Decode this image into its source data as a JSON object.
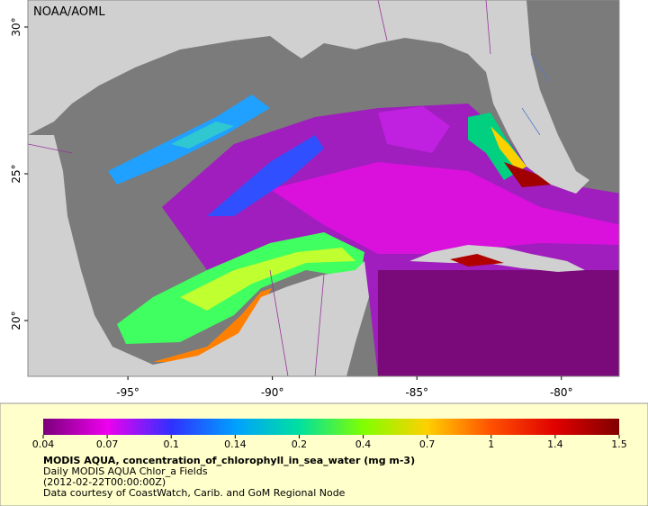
{
  "watermark": "NOAA/AOML",
  "map": {
    "lonlim": [
      -98.46,
      -78
    ],
    "latlim": [
      18.1,
      30.92
    ],
    "lat_ticks": [
      {
        "value": 30,
        "label": "30°"
      },
      {
        "value": 25,
        "label": "25°"
      },
      {
        "value": 20,
        "label": "20°"
      }
    ],
    "lon_ticks": [
      {
        "value": -95,
        "label": "-95°"
      },
      {
        "value": -90,
        "label": "-90°"
      },
      {
        "value": -85,
        "label": "-85°"
      },
      {
        "value": -80,
        "label": "-80°"
      }
    ]
  },
  "legend": {
    "ticks": [
      0.04,
      0.07,
      0.1,
      0.14,
      0.2,
      0.4,
      0.7,
      1,
      1.4,
      1.5
    ],
    "colors": [
      "#7a007a",
      "#ee00ee",
      "#3030ff",
      "#00a0ff",
      "#00e0a0",
      "#80ff00",
      "#ffd000",
      "#ff5000",
      "#e00000",
      "#800000"
    ],
    "title": "MODIS AQUA, concentration_of_chlorophyll_in_sea_water (mg m-3)",
    "lines": [
      "Daily MODIS AQUA Chlor_a Fields",
      "(2012-02-22T00:00:00Z)",
      "Data courtesy of CoastWatch, Carib. and GoM Regional Node"
    ]
  }
}
